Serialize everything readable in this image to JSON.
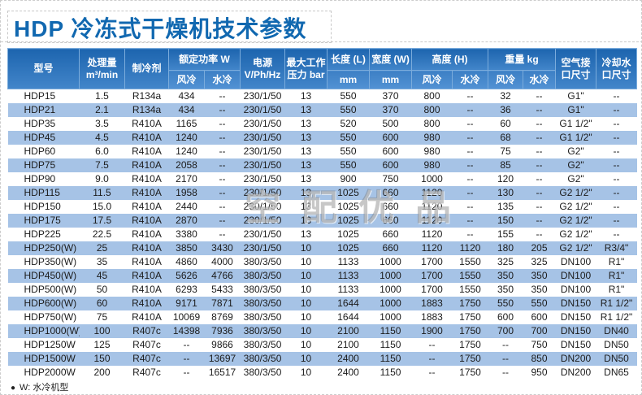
{
  "title": "HDP 冷冻式干燥机技术参数",
  "watermark": "空配优品",
  "footnote": {
    "bullet": "●",
    "text": "W: 水冷机型"
  },
  "colors": {
    "title_blue": "#1168b0",
    "header_blue_top": "#1d65af",
    "header_blue_bottom": "#4386ca",
    "row_alt_blue": "#a6c3e6"
  },
  "table": {
    "header": {
      "model": "型号",
      "capacity_l1": "处理量",
      "capacity_l2": "m³/min",
      "refrigerant": "制冷剂",
      "power_group": "额定功率 W",
      "air_cooled": "风冷",
      "water_cooled": "水冷",
      "voltage_l1": "电源",
      "voltage_l2": "V/Ph/Hz",
      "pressure_l1": "最大工作",
      "pressure_l2": "压力 bar",
      "length_label": "长度 (L)",
      "width_label": "宽度 (W)",
      "mm": "mm",
      "height_group": "高度 (H)",
      "weight_group": "重量 kg",
      "air_port_l1": "空气接",
      "air_port_l2": "口尺寸",
      "water_port_l1": "冷却水",
      "water_port_l2": "口尺寸"
    },
    "rows": [
      [
        "HDP15",
        "1.5",
        "R134a",
        "434",
        "--",
        "230/1/50",
        "13",
        "550",
        "370",
        "800",
        "--",
        "32",
        "--",
        "G1\"",
        "--"
      ],
      [
        "HDP21",
        "2.1",
        "R134a",
        "434",
        "--",
        "230/1/50",
        "13",
        "550",
        "370",
        "800",
        "--",
        "36",
        "--",
        "G1\"",
        "--"
      ],
      [
        "HDP35",
        "3.5",
        "R410A",
        "1165",
        "--",
        "230/1/50",
        "13",
        "520",
        "500",
        "800",
        "--",
        "60",
        "--",
        "G1 1/2\"",
        "--"
      ],
      [
        "HDP45",
        "4.5",
        "R410A",
        "1240",
        "--",
        "230/1/50",
        "13",
        "550",
        "600",
        "980",
        "--",
        "68",
        "--",
        "G1 1/2\"",
        "--"
      ],
      [
        "HDP60",
        "6.0",
        "R410A",
        "1240",
        "--",
        "230/1/50",
        "13",
        "550",
        "600",
        "980",
        "--",
        "75",
        "--",
        "G2\"",
        "--"
      ],
      [
        "HDP75",
        "7.5",
        "R410A",
        "2058",
        "--",
        "230/1/50",
        "13",
        "550",
        "600",
        "980",
        "--",
        "85",
        "--",
        "G2\"",
        "--"
      ],
      [
        "HDP90",
        "9.0",
        "R410A",
        "2170",
        "--",
        "230/1/50",
        "13",
        "900",
        "750",
        "1000",
        "--",
        "120",
        "--",
        "G2\"",
        "--"
      ],
      [
        "HDP115",
        "11.5",
        "R410A",
        "1958",
        "--",
        "230/1/50",
        "13",
        "1025",
        "660",
        "1120",
        "--",
        "130",
        "--",
        "G2 1/2\"",
        "--"
      ],
      [
        "HDP150",
        "15.0",
        "R410A",
        "2440",
        "--",
        "230/1/50",
        "13",
        "1025",
        "660",
        "1120",
        "--",
        "135",
        "--",
        "G2 1/2\"",
        "--"
      ],
      [
        "HDP175",
        "17.5",
        "R410A",
        "2870",
        "--",
        "230/1/50",
        "13",
        "1025",
        "660",
        "1120",
        "--",
        "150",
        "--",
        "G2 1/2\"",
        "--"
      ],
      [
        "HDP225",
        "22.5",
        "R410A",
        "3380",
        "--",
        "230/1/50",
        "13",
        "1025",
        "660",
        "1120",
        "--",
        "155",
        "--",
        "G2 1/2\"",
        "--"
      ],
      [
        "HDP250(W)",
        "25",
        "R410A",
        "3850",
        "3430",
        "230/1/50",
        "10",
        "1025",
        "660",
        "1120",
        "1120",
        "180",
        "205",
        "G2 1/2\"",
        "R3/4\""
      ],
      [
        "HDP350(W)",
        "35",
        "R410A",
        "4860",
        "4000",
        "380/3/50",
        "10",
        "1133",
        "1000",
        "1700",
        "1550",
        "325",
        "325",
        "DN100",
        "R1\""
      ],
      [
        "HDP450(W)",
        "45",
        "R410A",
        "5626",
        "4766",
        "380/3/50",
        "10",
        "1133",
        "1000",
        "1700",
        "1550",
        "350",
        "350",
        "DN100",
        "R1\""
      ],
      [
        "HDP500(W)",
        "50",
        "R410A",
        "6293",
        "5433",
        "380/3/50",
        "10",
        "1133",
        "1000",
        "1700",
        "1550",
        "350",
        "350",
        "DN100",
        "R1\""
      ],
      [
        "HDP600(W)",
        "60",
        "R410A",
        "9171",
        "7871",
        "380/3/50",
        "10",
        "1644",
        "1000",
        "1883",
        "1750",
        "550",
        "550",
        "DN150",
        "R1 1/2\""
      ],
      [
        "HDP750(W)",
        "75",
        "R410A",
        "10069",
        "8769",
        "380/3/50",
        "10",
        "1644",
        "1000",
        "1883",
        "1750",
        "600",
        "600",
        "DN150",
        "R1 1/2\""
      ],
      [
        "HDP1000(W)",
        "100",
        "R407c",
        "14398",
        "7936",
        "380/3/50",
        "10",
        "2100",
        "1150",
        "1900",
        "1750",
        "700",
        "700",
        "DN150",
        "DN40"
      ],
      [
        "HDP1250W",
        "125",
        "R407c",
        "--",
        "9866",
        "380/3/50",
        "10",
        "2100",
        "1150",
        "--",
        "1750",
        "--",
        "750",
        "DN150",
        "DN50"
      ],
      [
        "HDP1500W",
        "150",
        "R407c",
        "--",
        "13697",
        "380/3/50",
        "10",
        "2400",
        "1150",
        "--",
        "1750",
        "--",
        "850",
        "DN200",
        "DN50"
      ],
      [
        "HDP2000W",
        "200",
        "R407c",
        "--",
        "16517",
        "380/3/50",
        "10",
        "2400",
        "1150",
        "--",
        "1750",
        "--",
        "950",
        "DN200",
        "DN65"
      ]
    ]
  }
}
